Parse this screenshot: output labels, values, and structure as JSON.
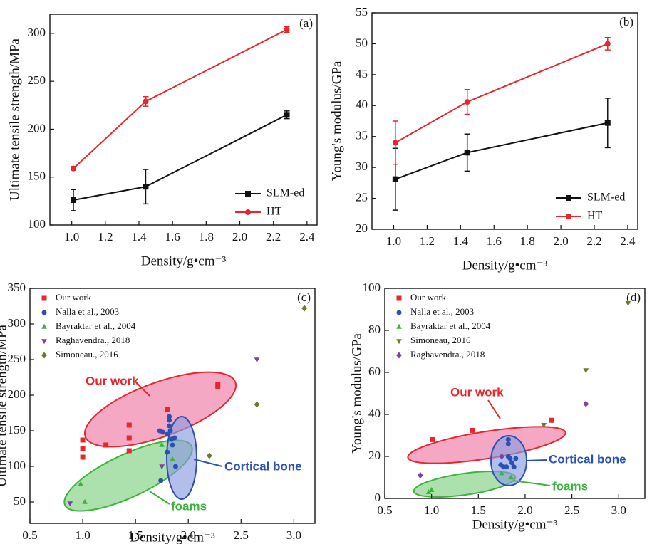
{
  "chart_data": [
    {
      "type": "line",
      "panel_label": "(a)",
      "x_label": "Density/g•cm⁻³",
      "y_label": "Ultimate tensile strength/MPa",
      "x": [
        1.01,
        1.44,
        2.28
      ],
      "series": [
        {
          "name": "SLM-ed",
          "color": "#111111",
          "marker": "square",
          "values": [
            126,
            140,
            215
          ],
          "errors": [
            11,
            18,
            4
          ]
        },
        {
          "name": "HT",
          "color": "#e8262d",
          "marker": "circle",
          "values": [
            159,
            229,
            304
          ],
          "errors": [
            2,
            5,
            3
          ]
        }
      ],
      "xlim": [
        0.87,
        2.46
      ],
      "ylim": [
        100,
        320
      ],
      "xticks": [
        {
          "value": 1,
          "label": "1.0"
        },
        1.2,
        1.4,
        1.6,
        1.8,
        {
          "value": 2,
          "label": "2.0"
        },
        2.2,
        2.4
      ],
      "yticks": [
        100,
        150,
        200,
        250,
        300
      ],
      "legend": "lower right"
    },
    {
      "type": "line",
      "panel_label": "(b)",
      "x_label": "Density/g•cm⁻³",
      "y_label": "Young's modulus/GPa",
      "x": [
        1.01,
        1.44,
        2.28
      ],
      "series": [
        {
          "name": "SLM-ed",
          "color": "#111111",
          "marker": "square",
          "values": [
            28.1,
            32.4,
            37.2
          ],
          "errors": [
            5,
            3,
            4
          ]
        },
        {
          "name": "HT",
          "color": "#e8262d",
          "marker": "circle",
          "values": [
            34,
            40.6,
            50
          ],
          "errors": [
            3.5,
            2,
            1
          ]
        }
      ],
      "xlim": [
        0.87,
        2.46
      ],
      "ylim": [
        20,
        55
      ],
      "xticks": [
        {
          "value": 1,
          "label": "1.0"
        },
        1.2,
        1.4,
        1.6,
        1.8,
        {
          "value": 2,
          "label": "2.0"
        },
        2.2,
        2.4
      ],
      "yticks": [
        20,
        25,
        30,
        35,
        40,
        45,
        50,
        55
      ],
      "legend": "lower right"
    },
    {
      "type": "scatter",
      "panel_label": "(c)",
      "x_label": "Density/g•cm⁻³",
      "y_label": "Ultimate tensile strength/MPa",
      "series": [
        {
          "name": "Our work",
          "color": "#e8262d",
          "marker": "square",
          "x": [
            1.0,
            1.0,
            1.0,
            1.22,
            1.44,
            1.44,
            1.44,
            1.8,
            2.28,
            2.28
          ],
          "values": [
            137,
            125,
            113,
            130,
            158,
            140,
            122,
            180,
            215,
            212
          ]
        },
        {
          "name": "Nalla et al., 2003",
          "color": "#2b4fb3",
          "marker": "circle",
          "x": [
            1.73,
            1.76,
            1.8,
            1.82,
            1.82,
            1.82,
            1.83,
            1.84,
            1.85,
            1.87,
            1.88,
            1.74,
            1.8
          ],
          "values": [
            150,
            148,
            145,
            170,
            165,
            157,
            150,
            138,
            130,
            140,
            100,
            80,
            120
          ]
        },
        {
          "name": "Bayraktar et al., 2004",
          "color": "#3cb43c",
          "marker": "triangle-up",
          "x": [
            0.98,
            1.02,
            1.75,
            1.85
          ],
          "values": [
            75,
            50,
            130,
            110
          ]
        },
        {
          "name": "Raghavendra., 2018",
          "color": "#7e3fa8",
          "marker": "triangle-down",
          "x": [
            0.88,
            1.75,
            2.65
          ],
          "values": [
            48,
            100,
            250
          ]
        },
        {
          "name": "Simoneau., 2016",
          "color": "#6b7a25",
          "marker": "diamond",
          "x": [
            2.2,
            2.65,
            3.1
          ],
          "values": [
            115,
            187,
            322
          ]
        }
      ],
      "annotations": [
        "Our work",
        "Cortical bone",
        "foams"
      ],
      "xlim": [
        0.5,
        3.2
      ],
      "ylim": [
        20,
        350
      ],
      "xticks": [
        0.5,
        {
          "value": 1,
          "label": "1.0"
        },
        1.5,
        {
          "value": 2,
          "label": "2.0"
        },
        2.5,
        {
          "value": 3,
          "label": "3.0"
        }
      ],
      "yticks": [
        50,
        100,
        150,
        200,
        250,
        300,
        350
      ],
      "legend": "upper left"
    },
    {
      "type": "scatter",
      "panel_label": "(d)",
      "x_label": "Density/g•cm⁻³",
      "y_label": "Young's modulus/GPa",
      "series": [
        {
          "name": "Our work",
          "color": "#e8262d",
          "marker": "square",
          "x": [
            1.01,
            1.44,
            2.28
          ],
          "values": [
            28,
            32.4,
            37.2
          ]
        },
        {
          "name": "Nalla et al., 2003",
          "color": "#2b4fb3",
          "marker": "circle",
          "x": [
            1.74,
            1.77,
            1.8,
            1.82,
            1.82,
            1.82,
            1.84,
            1.86,
            1.88,
            1.9
          ],
          "values": [
            16,
            15,
            15,
            28,
            26,
            20,
            19,
            17,
            15,
            19
          ]
        },
        {
          "name": "Bayraktar et al., 2004",
          "color": "#3cb43c",
          "marker": "triangle-up",
          "x": [
            0.97,
            1.0,
            1.75,
            1.85
          ],
          "values": [
            3,
            4,
            12,
            10
          ]
        },
        {
          "name": "Simoneau, 2016",
          "color": "#6b7a25",
          "marker": "triangle-down",
          "x": [
            2.2,
            2.65,
            3.1
          ],
          "values": [
            35,
            61,
            93
          ]
        },
        {
          "name": "Raghavendra., 2018",
          "color": "#7e3fa8",
          "marker": "diamond",
          "x": [
            0.88,
            1.75,
            2.65
          ],
          "values": [
            11,
            20,
            45
          ]
        }
      ],
      "annotations": [
        "Our work",
        "Cortical bone",
        "foams"
      ],
      "xlim": [
        0.5,
        3.28
      ],
      "ylim": [
        0,
        100
      ],
      "xticks": [
        0.5,
        {
          "value": 1,
          "label": "1.0"
        },
        1.5,
        {
          "value": 2,
          "label": "2.0"
        },
        2.5,
        {
          "value": 3,
          "label": "3.0"
        }
      ],
      "yticks": [
        0,
        20,
        40,
        60,
        80,
        100
      ],
      "legend": "upper left"
    }
  ]
}
